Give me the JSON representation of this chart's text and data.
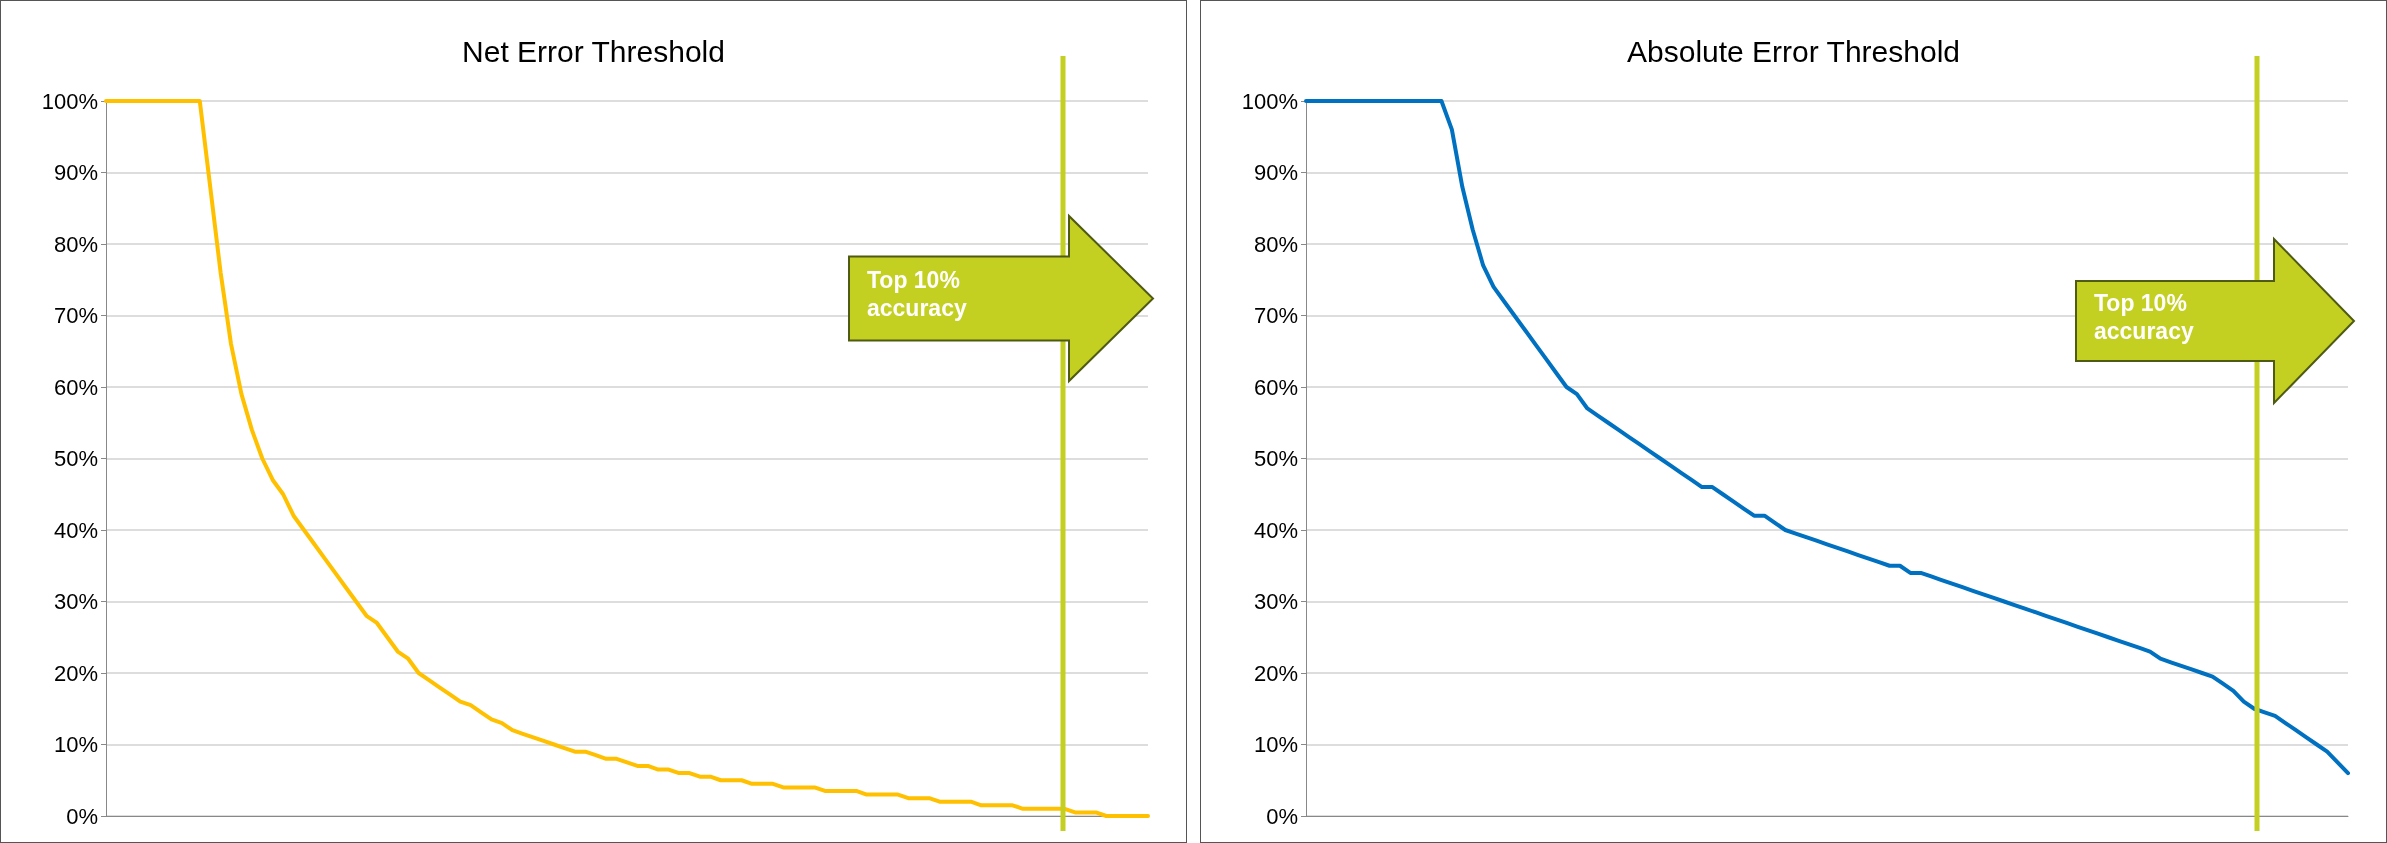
{
  "chart_data": [
    {
      "type": "line",
      "title": "Net Error Threshold",
      "categories": [
        null,
        null,
        null,
        null,
        null,
        null,
        null,
        null,
        null,
        null,
        null,
        null,
        null,
        null,
        null,
        null,
        null,
        null,
        null,
        null,
        null,
        null,
        null,
        null,
        null,
        null,
        null,
        null,
        null,
        null,
        null,
        null,
        null,
        null,
        null,
        null,
        null,
        null,
        null,
        null,
        null,
        null,
        null,
        null,
        null,
        null,
        null,
        null,
        null,
        null,
        null,
        null,
        null,
        null,
        null,
        null,
        null,
        null,
        null,
        null,
        null,
        null,
        null,
        null,
        null,
        null,
        null,
        null,
        null,
        null,
        null,
        null,
        null,
        null,
        null,
        null,
        null,
        null,
        null,
        null,
        null,
        null,
        null,
        null,
        null,
        null,
        null,
        null,
        null,
        null,
        null,
        null,
        null,
        null,
        null,
        null,
        null,
        null,
        null,
        null,
        null
      ],
      "series": [
        {
          "color": "#ffc000",
          "values": [
            100,
            100,
            100,
            100,
            100,
            100,
            100,
            100,
            100,
            100,
            88,
            76,
            66,
            59,
            54,
            50,
            47,
            45,
            42,
            40,
            38,
            36,
            34,
            32,
            30,
            28,
            27,
            25,
            23,
            22,
            20,
            19,
            18,
            17,
            16,
            15.5,
            14.5,
            13.5,
            13,
            12,
            11.5,
            11,
            10.5,
            10,
            9.5,
            9,
            9,
            8.5,
            8,
            8,
            7.5,
            7,
            7,
            6.5,
            6.5,
            6,
            6,
            5.5,
            5.5,
            5,
            5,
            5,
            4.5,
            4.5,
            4.5,
            4,
            4,
            4,
            4,
            3.5,
            3.5,
            3.5,
            3.5,
            3,
            3,
            3,
            3,
            2.5,
            2.5,
            2.5,
            2,
            2,
            2,
            2,
            1.5,
            1.5,
            1.5,
            1.5,
            1,
            1,
            1,
            1,
            1,
            0.5,
            0.5,
            0.5,
            0,
            0,
            0,
            0,
            0
          ]
        }
      ],
      "ylim": [
        0,
        100
      ],
      "yticks": [
        {
          "value": 0,
          "label": "0%"
        },
        {
          "value": 10,
          "label": "10%"
        },
        {
          "value": 20,
          "label": "20%"
        },
        {
          "value": 30,
          "label": "30%"
        },
        {
          "value": 40,
          "label": "40%"
        },
        {
          "value": 50,
          "label": "50%"
        },
        {
          "value": 60,
          "label": "60%"
        },
        {
          "value": 70,
          "label": "70%"
        },
        {
          "value": 80,
          "label": "80%"
        },
        {
          "value": 90,
          "label": "90%"
        },
        {
          "value": 100,
          "label": "100%"
        }
      ],
      "grid": "y",
      "tick_labels": "y",
      "marker": "none",
      "line_style": "solid",
      "annotations": [
        "Top 10% accuracy"
      ]
    },
    {
      "type": "line",
      "title": "Absolute Error Threshold",
      "categories": [
        null,
        null,
        null,
        null,
        null,
        null,
        null,
        null,
        null,
        null,
        null,
        null,
        null,
        null,
        null,
        null,
        null,
        null,
        null,
        null,
        null,
        null,
        null,
        null,
        null,
        null,
        null,
        null,
        null,
        null,
        null,
        null,
        null,
        null,
        null,
        null,
        null,
        null,
        null,
        null,
        null,
        null,
        null,
        null,
        null,
        null,
        null,
        null,
        null,
        null,
        null,
        null,
        null,
        null,
        null,
        null,
        null,
        null,
        null,
        null,
        null,
        null,
        null,
        null,
        null,
        null,
        null,
        null,
        null,
        null,
        null,
        null,
        null,
        null,
        null,
        null,
        null,
        null,
        null,
        null,
        null,
        null,
        null,
        null,
        null,
        null,
        null,
        null,
        null,
        null,
        null,
        null,
        null,
        null,
        null,
        null,
        null,
        null,
        null,
        null,
        null
      ],
      "series": [
        {
          "color": "#0070c0",
          "values": [
            100,
            100,
            100,
            100,
            100,
            100,
            100,
            100,
            100,
            100,
            100,
            100,
            100,
            100,
            96,
            88,
            82,
            77,
            74,
            72,
            70,
            68,
            66,
            64,
            62,
            60,
            59,
            57,
            56,
            55,
            54,
            53,
            52,
            51,
            50,
            49,
            48,
            47,
            46,
            46,
            45,
            44,
            43,
            42,
            42,
            41,
            40,
            39.5,
            39,
            38.5,
            38,
            37.5,
            37,
            36.5,
            36,
            35.5,
            35,
            35,
            34,
            34,
            33.5,
            33,
            32.5,
            32,
            31.5,
            31,
            30.5,
            30,
            29.5,
            29,
            28.5,
            28,
            27.5,
            27,
            26.5,
            26,
            25.5,
            25,
            24.5,
            24,
            23.5,
            23,
            22,
            21.5,
            21,
            20.5,
            20,
            19.5,
            18.5,
            17.5,
            16,
            15,
            14.5,
            14,
            13,
            12,
            11,
            10,
            9,
            7.5,
            6
          ]
        }
      ],
      "ylim": [
        0,
        100
      ],
      "yticks": [
        {
          "value": 0,
          "label": "0%"
        },
        {
          "value": 10,
          "label": "10%"
        },
        {
          "value": 20,
          "label": "20%"
        },
        {
          "value": 30,
          "label": "30%"
        },
        {
          "value": 40,
          "label": "40%"
        },
        {
          "value": 50,
          "label": "50%"
        },
        {
          "value": 60,
          "label": "60%"
        },
        {
          "value": 70,
          "label": "70%"
        },
        {
          "value": 80,
          "label": "80%"
        },
        {
          "value": 90,
          "label": "90%"
        },
        {
          "value": 100,
          "label": "100%"
        }
      ],
      "grid": "y",
      "tick_labels": "y",
      "marker": "none",
      "line_style": "solid",
      "annotations": [
        "Top 10% accuracy"
      ]
    }
  ]
}
